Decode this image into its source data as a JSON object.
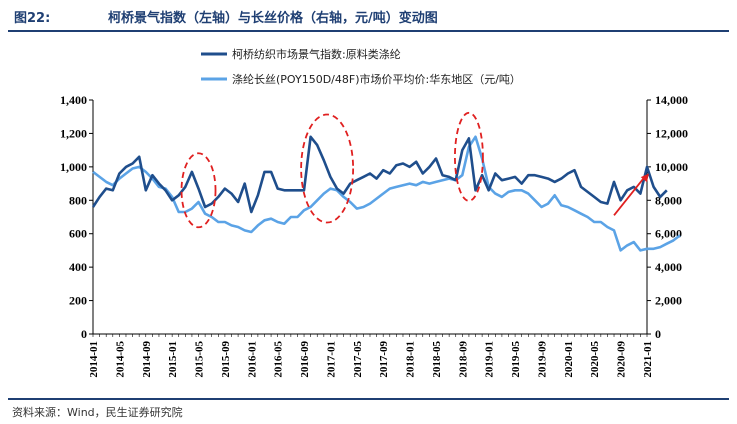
{
  "header": {
    "figure_number": "图22:",
    "title": "柯桥景气指数（左轴）与长丝价格（右轴，元/吨）变动图"
  },
  "footer": {
    "source": "资料来源：Wind，民生证券研究院"
  },
  "colors": {
    "series1": "#1f4e8c",
    "series2": "#5ba3e6",
    "annotation": "#e02020",
    "rule": "#1f3f73"
  },
  "chart_data": {
    "type": "line",
    "title": "柯桥景气指数（左轴）与长丝价格（右轴，元/吨）变动图",
    "x_tick_labels": [
      "2014-01",
      "2014-05",
      "2014-09",
      "2015-01",
      "2015-05",
      "2015-09",
      "2016-01",
      "2016-05",
      "2016-09",
      "2017-01",
      "2017-05",
      "2017-09",
      "2018-01",
      "2018-05",
      "2018-09",
      "2019-01",
      "2019-05",
      "2019-09",
      "2020-01",
      "2020-05",
      "2020-09",
      "2021-01"
    ],
    "left_axis": {
      "min": 0,
      "max": 1400,
      "ticks": [
        "0",
        "200",
        "400",
        "600",
        "800",
        "1,000",
        "1,200",
        "1,400"
      ]
    },
    "right_axis": {
      "min": 0,
      "max": 14000,
      "ticks": [
        "0",
        "2,000",
        "4,000",
        "6,000",
        "8,000",
        "10,000",
        "12,000",
        "14,000"
      ]
    },
    "series": [
      {
        "name": "柯桥纺织市场景气指数:原料类涤纶",
        "axis": "left",
        "start": "2014-01",
        "values": [
          760,
          820,
          870,
          860,
          960,
          1000,
          1020,
          1060,
          860,
          950,
          900,
          860,
          800,
          830,
          880,
          970,
          870,
          760,
          780,
          820,
          870,
          840,
          790,
          900,
          730,
          830,
          970,
          970,
          870,
          860,
          860,
          860,
          860,
          1180,
          1130,
          1040,
          940,
          870,
          840,
          900,
          920,
          940,
          960,
          930,
          980,
          960,
          1010,
          1020,
          1000,
          1030,
          960,
          1000,
          1050,
          950,
          940,
          920,
          1100,
          1170,
          860,
          950,
          860,
          960,
          920,
          930,
          940,
          900,
          950,
          950,
          940,
          930,
          910,
          930,
          960,
          980,
          880,
          850,
          820,
          790,
          780,
          910,
          800,
          860,
          880,
          840,
          1000,
          880,
          820,
          860
        ]
      },
      {
        "name": "涤纶长丝(POY150D/48F)市场价平均价:华东地区（元/吨）",
        "axis": "right",
        "start": "2014-01",
        "values": [
          9700,
          9400,
          9100,
          8900,
          9300,
          9600,
          9900,
          10000,
          9700,
          9300,
          8800,
          8700,
          8200,
          7300,
          7300,
          7500,
          7900,
          7200,
          7000,
          6700,
          6700,
          6500,
          6400,
          6200,
          6100,
          6500,
          6800,
          6900,
          6700,
          6600,
          7000,
          7000,
          7400,
          7600,
          8000,
          8400,
          8700,
          8600,
          8200,
          7900,
          7500,
          7600,
          7800,
          8100,
          8400,
          8700,
          8800,
          8900,
          9000,
          8900,
          9100,
          9000,
          9100,
          9200,
          9300,
          9200,
          9500,
          11200,
          11800,
          10500,
          8800,
          8400,
          8200,
          8500,
          8600,
          8600,
          8400,
          8000,
          7600,
          7800,
          8300,
          7700,
          7600,
          7400,
          7200,
          7000,
          6700,
          6700,
          6400,
          6200,
          5000,
          5300,
          5500,
          5000,
          5100,
          5100,
          5200,
          5400,
          5600,
          5900
        ]
      }
    ],
    "annotations": [
      {
        "type": "ellipse",
        "label": "2015 H1 peak"
      },
      {
        "type": "ellipse",
        "label": "2016-10 to 2017-02 peak"
      },
      {
        "type": "ellipse",
        "label": "2018-08 peak"
      },
      {
        "type": "arrow",
        "label": "2020 recovery"
      }
    ]
  }
}
